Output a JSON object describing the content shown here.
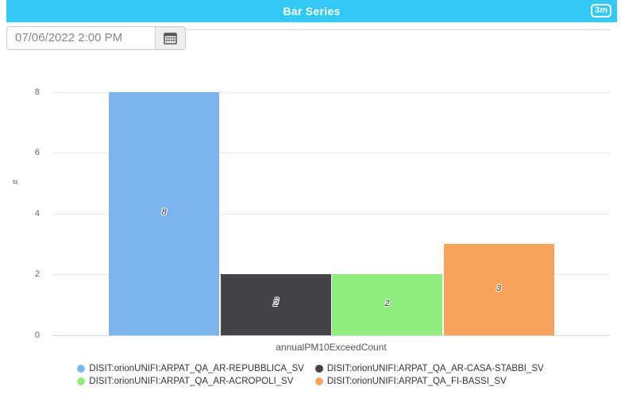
{
  "header": {
    "title": "Bar Series",
    "badge": "3m",
    "accent_color": "#32c9f4"
  },
  "toolbar": {
    "datetime_value": "07/06/2022 2:00 PM"
  },
  "chart_data": {
    "type": "bar",
    "title": "Bar Series",
    "categories": [
      "annualPM10ExceedCount"
    ],
    "series": [
      {
        "name": "DISIT:orionUNIFI:ARPAT_QA_AR-REPUBBLICA_SV",
        "color": "#7cb5ec",
        "values": [
          8
        ]
      },
      {
        "name": "DISIT:orionUNIFI:ARPAT_QA_AR-CASA-STABBI_SV",
        "color": "#434348",
        "values": [
          2
        ],
        "label_doubled": true
      },
      {
        "name": "DISIT:orionUNIFI:ARPAT_QA_AR-ACROPOLI_SV",
        "color": "#90ed7d",
        "values": [
          2
        ]
      },
      {
        "name": "DISIT:orionUNIFI:ARPAT_QA_FI-BASSI_SV",
        "color": "#f7a35c",
        "values": [
          3
        ]
      }
    ],
    "xlabel": "annualPM10ExceedCount",
    "ylabel": "#",
    "ylim": [
      0,
      8
    ],
    "yticks": [
      0,
      2,
      4,
      6,
      8
    ],
    "grid": true,
    "legend_position": "bottom",
    "axis_line_color": "#ccd6eb",
    "grid_color": "#e6e6e6"
  }
}
